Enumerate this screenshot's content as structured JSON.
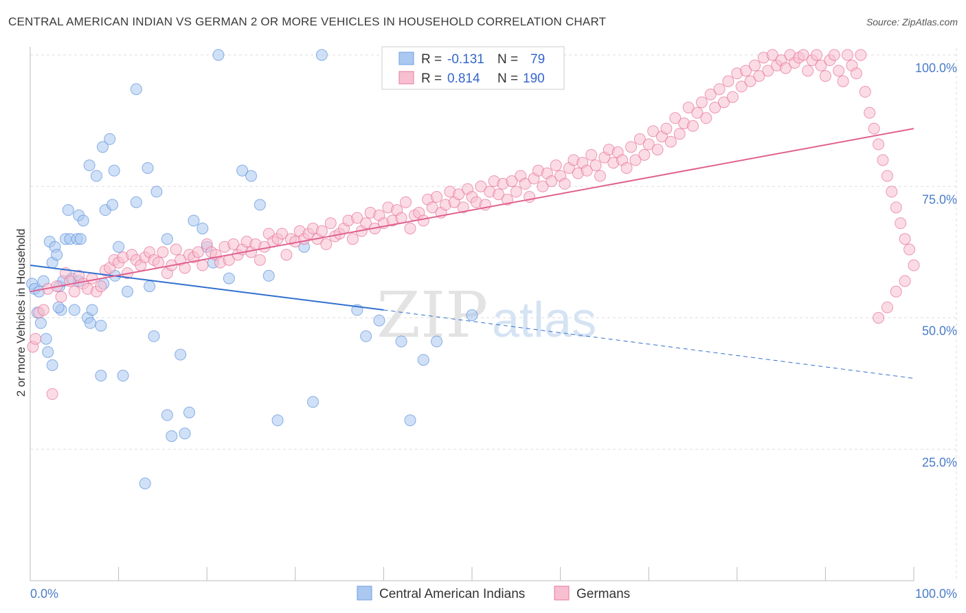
{
  "title": "CENTRAL AMERICAN INDIAN VS GERMAN 2 OR MORE VEHICLES IN HOUSEHOLD CORRELATION CHART",
  "source": "Source: ZipAtlas.com",
  "watermark": {
    "zip": "ZIP",
    "atlas": "atlas"
  },
  "legend": {
    "r_label": "R =",
    "n_label": "N =",
    "rows": [
      {
        "r": "-0.131",
        "n": "79",
        "color": "#6f9fe0",
        "fill": "#aac8f0"
      },
      {
        "r": "0.814",
        "n": "190",
        "color": "#e57ba0",
        "fill": "#f7bfd0"
      }
    ]
  },
  "chart_data": {
    "type": "scatter",
    "title": "CENTRAL AMERICAN INDIAN VS GERMAN 2 OR MORE VEHICLES IN HOUSEHOLD CORRELATION CHART",
    "xlabel": "",
    "ylabel": "2 or more Vehicles in Household",
    "xlim": [
      0,
      100
    ],
    "ylim": [
      0,
      105
    ],
    "x_tick_labels": [
      "0.0%",
      "100.0%"
    ],
    "y_tick_labels": [
      "25.0%",
      "50.0%",
      "75.0%",
      "100.0%"
    ],
    "y_ticks": [
      25,
      50,
      75,
      100
    ],
    "grid": true,
    "legend_position": "top-center",
    "series": [
      {
        "name": "Central American Indians",
        "color": "#5b8fdc",
        "fill": "#aac8f0",
        "trend": {
          "x0": 0,
          "y0": 60,
          "x1": 40,
          "y1": 51.5,
          "dash_x1": 100,
          "dash_y1": 38.5
        },
        "points": [
          [
            0.2,
            56.5
          ],
          [
            0.5,
            55.5
          ],
          [
            0.8,
            51
          ],
          [
            1.2,
            49
          ],
          [
            1.5,
            57
          ],
          [
            1.8,
            46
          ],
          [
            2,
            43.5
          ],
          [
            2.2,
            64.5
          ],
          [
            2.5,
            60.5
          ],
          [
            2.8,
            63.5
          ],
          [
            3,
            62
          ],
          [
            3.3,
            56
          ],
          [
            3.5,
            51.5
          ],
          [
            3.7,
            57
          ],
          [
            4,
            65
          ],
          [
            4.3,
            70.5
          ],
          [
            4.5,
            65
          ],
          [
            4.7,
            57.5
          ],
          [
            5,
            51.5
          ],
          [
            5.3,
            65
          ],
          [
            5.5,
            69.5
          ],
          [
            5.7,
            65
          ],
          [
            6,
            68.5
          ],
          [
            6.5,
            50
          ],
          [
            6.8,
            49
          ],
          [
            7,
            51.5
          ],
          [
            7.5,
            77
          ],
          [
            8,
            39
          ],
          [
            8.3,
            56.5
          ],
          [
            8.5,
            70.5
          ],
          [
            9,
            84
          ],
          [
            8.2,
            82.5
          ],
          [
            9.3,
            71.5
          ],
          [
            9.6,
            58
          ],
          [
            10,
            63.5
          ],
          [
            11,
            55
          ],
          [
            12,
            72
          ],
          [
            12,
            93.5
          ],
          [
            13.3,
            78.5
          ],
          [
            13.5,
            56
          ],
          [
            14,
            46.5
          ],
          [
            14.3,
            74
          ],
          [
            15.5,
            65
          ],
          [
            16,
            27.5
          ],
          [
            17,
            43
          ],
          [
            17.5,
            28
          ],
          [
            18,
            32
          ],
          [
            18.5,
            68.5
          ],
          [
            19.5,
            67
          ],
          [
            20,
            63.5
          ],
          [
            20.7,
            60.5
          ],
          [
            21.3,
            100
          ],
          [
            22.5,
            57.5
          ],
          [
            24,
            78
          ],
          [
            25,
            77
          ],
          [
            26,
            71.5
          ],
          [
            27,
            58
          ],
          [
            28,
            30.5
          ],
          [
            31,
            63.5
          ],
          [
            32,
            34
          ],
          [
            33,
            100
          ],
          [
            37,
            51.5
          ],
          [
            38,
            46.5
          ],
          [
            39.5,
            49.5
          ],
          [
            42,
            45.5
          ],
          [
            43,
            30.5
          ],
          [
            44.5,
            42
          ],
          [
            46,
            45.5
          ],
          [
            50,
            50.5
          ],
          [
            13,
            18.5
          ],
          [
            15.5,
            31.5
          ],
          [
            8,
            48.5
          ],
          [
            10.5,
            39
          ],
          [
            3.2,
            52
          ],
          [
            5.5,
            57
          ],
          [
            6.7,
            79
          ],
          [
            9.5,
            78
          ],
          [
            2.5,
            41
          ],
          [
            1,
            55
          ]
        ]
      },
      {
        "name": "Germans",
        "color": "#e66f98",
        "fill": "#f7bfd0",
        "trend": {
          "x0": 0,
          "y0": 55,
          "x1": 100,
          "y1": 86
        },
        "points": [
          [
            0.3,
            44.5
          ],
          [
            0.6,
            46
          ],
          [
            1,
            51
          ],
          [
            1.5,
            51.5
          ],
          [
            2,
            55.5
          ],
          [
            2.5,
            35.5
          ],
          [
            3,
            56
          ],
          [
            3.5,
            54
          ],
          [
            4,
            58.5
          ],
          [
            4.5,
            57
          ],
          [
            5,
            55
          ],
          [
            5.5,
            58
          ],
          [
            6,
            56.5
          ],
          [
            6.5,
            55.5
          ],
          [
            7,
            57.5
          ],
          [
            7.5,
            55
          ],
          [
            8,
            56
          ],
          [
            8.5,
            59
          ],
          [
            9,
            59.5
          ],
          [
            9.5,
            61
          ],
          [
            10,
            60.5
          ],
          [
            10.5,
            61.5
          ],
          [
            11,
            58.5
          ],
          [
            11.5,
            62
          ],
          [
            12,
            61
          ],
          [
            12.5,
            60
          ],
          [
            13,
            61.5
          ],
          [
            13.5,
            62.5
          ],
          [
            14,
            61
          ],
          [
            14.5,
            60.5
          ],
          [
            15,
            62.5
          ],
          [
            15.5,
            58.5
          ],
          [
            16,
            60
          ],
          [
            16.5,
            63
          ],
          [
            17,
            61
          ],
          [
            17.5,
            59.5
          ],
          [
            18,
            62
          ],
          [
            18.5,
            61.5
          ],
          [
            19,
            62.5
          ],
          [
            19.5,
            60
          ],
          [
            20,
            64
          ],
          [
            20.5,
            62.5
          ],
          [
            21,
            62
          ],
          [
            21.5,
            60.5
          ],
          [
            22,
            63.5
          ],
          [
            22.5,
            61
          ],
          [
            23,
            64
          ],
          [
            23.5,
            62
          ],
          [
            24,
            63
          ],
          [
            24.5,
            64.5
          ],
          [
            25,
            62.5
          ],
          [
            25.5,
            64
          ],
          [
            26,
            61
          ],
          [
            26.5,
            63.5
          ],
          [
            27,
            66
          ],
          [
            27.5,
            64.5
          ],
          [
            28,
            65
          ],
          [
            28.5,
            66
          ],
          [
            29,
            62
          ],
          [
            29.5,
            65
          ],
          [
            30,
            64.5
          ],
          [
            30.5,
            66.5
          ],
          [
            31,
            65
          ],
          [
            31.5,
            66
          ],
          [
            32,
            67
          ],
          [
            32.5,
            65
          ],
          [
            33,
            66.5
          ],
          [
            33.5,
            64
          ],
          [
            34,
            68
          ],
          [
            34.5,
            65.5
          ],
          [
            35,
            66
          ],
          [
            35.5,
            67
          ],
          [
            36,
            68.5
          ],
          [
            36.5,
            65
          ],
          [
            37,
            69
          ],
          [
            37.5,
            66.5
          ],
          [
            38,
            68
          ],
          [
            38.5,
            70
          ],
          [
            39,
            67
          ],
          [
            39.5,
            69.5
          ],
          [
            40,
            68
          ],
          [
            40.5,
            71
          ],
          [
            41,
            68.5
          ],
          [
            41.5,
            70.5
          ],
          [
            42,
            69
          ],
          [
            42.5,
            72
          ],
          [
            43,
            67
          ],
          [
            43.5,
            69.5
          ],
          [
            44,
            70
          ],
          [
            44.5,
            68.5
          ],
          [
            45,
            72.5
          ],
          [
            45.5,
            71
          ],
          [
            46,
            73
          ],
          [
            46.5,
            70
          ],
          [
            47,
            71.5
          ],
          [
            47.5,
            74
          ],
          [
            48,
            72
          ],
          [
            48.5,
            73.5
          ],
          [
            49,
            71
          ],
          [
            49.5,
            74.5
          ],
          [
            50,
            73
          ],
          [
            50.5,
            72
          ],
          [
            51,
            75
          ],
          [
            51.5,
            71.5
          ],
          [
            52,
            74
          ],
          [
            52.5,
            76
          ],
          [
            53,
            73.5
          ],
          [
            53.5,
            75.5
          ],
          [
            54,
            72.5
          ],
          [
            54.5,
            76
          ],
          [
            55,
            74
          ],
          [
            55.5,
            77
          ],
          [
            56,
            75.5
          ],
          [
            56.5,
            73
          ],
          [
            57,
            76.5
          ],
          [
            57.5,
            78
          ],
          [
            58,
            75
          ],
          [
            58.5,
            77.5
          ],
          [
            59,
            76
          ],
          [
            59.5,
            79
          ],
          [
            60,
            77
          ],
          [
            60.5,
            75.5
          ],
          [
            61,
            78.5
          ],
          [
            61.5,
            80
          ],
          [
            62,
            77.5
          ],
          [
            62.5,
            79.5
          ],
          [
            63,
            78
          ],
          [
            63.5,
            81
          ],
          [
            64,
            79
          ],
          [
            64.5,
            77
          ],
          [
            65,
            80.5
          ],
          [
            65.5,
            82
          ],
          [
            66,
            79.5
          ],
          [
            66.5,
            81.5
          ],
          [
            67,
            80
          ],
          [
            67.5,
            78.5
          ],
          [
            68,
            82.5
          ],
          [
            68.5,
            80
          ],
          [
            69,
            84
          ],
          [
            69.5,
            81
          ],
          [
            70,
            83
          ],
          [
            70.5,
            85.5
          ],
          [
            71,
            82
          ],
          [
            71.5,
            84.5
          ],
          [
            72,
            86
          ],
          [
            72.5,
            83.5
          ],
          [
            73,
            88
          ],
          [
            73.5,
            85
          ],
          [
            74,
            87
          ],
          [
            74.5,
            90
          ],
          [
            75,
            86.5
          ],
          [
            75.5,
            89
          ],
          [
            76,
            91
          ],
          [
            76.5,
            88
          ],
          [
            77,
            92.5
          ],
          [
            77.5,
            90
          ],
          [
            78,
            93.5
          ],
          [
            78.5,
            91
          ],
          [
            79,
            95
          ],
          [
            79.5,
            92
          ],
          [
            80,
            96.5
          ],
          [
            80.5,
            94
          ],
          [
            81,
            97
          ],
          [
            81.5,
            95
          ],
          [
            82,
            98
          ],
          [
            82.5,
            96
          ],
          [
            83,
            99.5
          ],
          [
            83.5,
            97
          ],
          [
            84,
            100
          ],
          [
            84.5,
            98
          ],
          [
            85,
            99
          ],
          [
            85.5,
            97.5
          ],
          [
            86,
            100
          ],
          [
            86.5,
            98.5
          ],
          [
            87,
            99.5
          ],
          [
            87.5,
            100
          ],
          [
            88,
            97
          ],
          [
            88.5,
            99
          ],
          [
            89,
            100
          ],
          [
            89.5,
            98
          ],
          [
            90,
            96
          ],
          [
            90.5,
            99
          ],
          [
            91,
            100
          ],
          [
            91.5,
            97
          ],
          [
            92,
            95
          ],
          [
            92.5,
            100
          ],
          [
            93,
            98
          ],
          [
            93.5,
            96.5
          ],
          [
            94,
            100
          ],
          [
            94.5,
            93
          ],
          [
            95,
            89
          ],
          [
            95.5,
            86
          ],
          [
            96,
            83
          ],
          [
            96.5,
            80
          ],
          [
            97,
            77
          ],
          [
            97.5,
            74
          ],
          [
            98,
            71
          ],
          [
            98.5,
            68
          ],
          [
            99,
            65
          ],
          [
            99.5,
            63
          ],
          [
            100,
            60
          ],
          [
            99,
            57
          ],
          [
            98,
            55
          ],
          [
            97,
            52
          ],
          [
            96,
            50
          ]
        ]
      }
    ]
  },
  "bottom_legend": [
    {
      "label": "Central American Indians",
      "fill": "#aac8f0",
      "stroke": "#6f9fe0"
    },
    {
      "label": "Germans",
      "fill": "#f7bfd0",
      "stroke": "#e57ba0"
    }
  ]
}
